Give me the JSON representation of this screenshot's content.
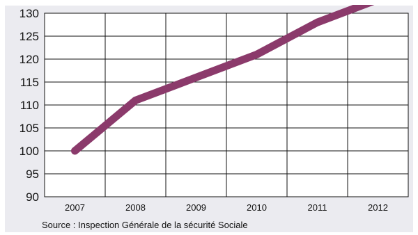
{
  "chart_data": {
    "type": "line",
    "title": "",
    "xlabel": "",
    "ylabel": "",
    "categories": [
      "2007",
      "2008",
      "2009",
      "2010",
      "2011",
      "2012"
    ],
    "series": [
      {
        "values": [
          100,
          111,
          116,
          121,
          128,
          133
        ]
      }
    ],
    "ylim": [
      90,
      130
    ],
    "yticks": [
      "90",
      "95",
      "100",
      "105",
      "110",
      "115",
      "120",
      "125",
      "130"
    ],
    "grid": true,
    "line_color": "#8b3a6b",
    "background_color": "#ebebf0"
  },
  "source": "Source : Inspection Générale de la sécurité Sociale"
}
